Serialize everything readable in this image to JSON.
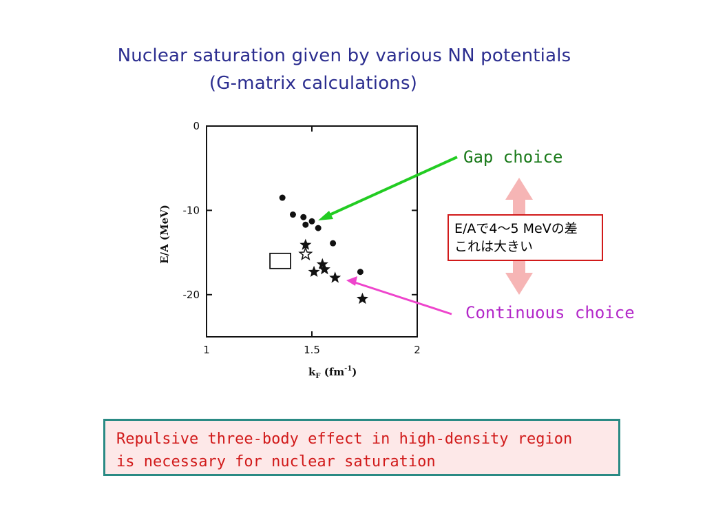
{
  "slide": {
    "title_line1": "Nuclear saturation given by various NN potentials",
    "title_line2": "(G-matrix calculations)",
    "gap_label": "Gap choice",
    "continuous_label": "Continuous choice",
    "difference_line1": "E/Aで4～5 MeVの差",
    "difference_line2": "これは大きい",
    "conclusion_line1": "Repulsive three-body effect in high-density region",
    "conclusion_line2": "is necessary for nuclear saturation"
  },
  "colors": {
    "title": "#2b2d8f",
    "gap_arrow": "#22cc22",
    "continuous_arrow": "#ee44cc",
    "double_arrow": "#f6b5b5",
    "box_border": "#d11a1a",
    "conclusion_border": "#2a8a84",
    "conclusion_bg": "#fde8e8"
  },
  "chart_data": {
    "type": "scatter",
    "xlabel": "k_F (fm^-1)",
    "ylabel": "E/A (MeV)",
    "xlim": [
      1,
      2
    ],
    "ylim": [
      -25,
      0
    ],
    "x_ticks": [
      1,
      1.5,
      2
    ],
    "x_tick_labels": [
      "1",
      "1.5",
      "2"
    ],
    "y_ticks": [
      0,
      -10,
      -20
    ],
    "y_tick_labels": [
      "0",
      "-10",
      "-20"
    ],
    "grid": false,
    "series": [
      {
        "marker": "dot",
        "points": [
          {
            "x": 1.36,
            "y": -8.5
          },
          {
            "x": 1.41,
            "y": -10.5
          },
          {
            "x": 1.46,
            "y": -10.8
          },
          {
            "x": 1.47,
            "y": -11.7
          },
          {
            "x": 1.5,
            "y": -11.3
          },
          {
            "x": 1.53,
            "y": -12.1
          },
          {
            "x": 1.6,
            "y": -13.9
          },
          {
            "x": 1.73,
            "y": -17.3
          }
        ]
      },
      {
        "marker": "star",
        "points": [
          {
            "x": 1.47,
            "y": -14.1
          },
          {
            "x": 1.55,
            "y": -16.4
          },
          {
            "x": 1.51,
            "y": -17.3
          },
          {
            "x": 1.56,
            "y": -17.0
          },
          {
            "x": 1.61,
            "y": -18.0
          },
          {
            "x": 1.74,
            "y": -20.5
          }
        ]
      },
      {
        "marker": "open-star",
        "points": [
          {
            "x": 1.47,
            "y": -15.2
          }
        ]
      },
      {
        "marker": "open-square",
        "points": [
          {
            "x": 1.35,
            "y": -16.0
          }
        ]
      }
    ]
  }
}
